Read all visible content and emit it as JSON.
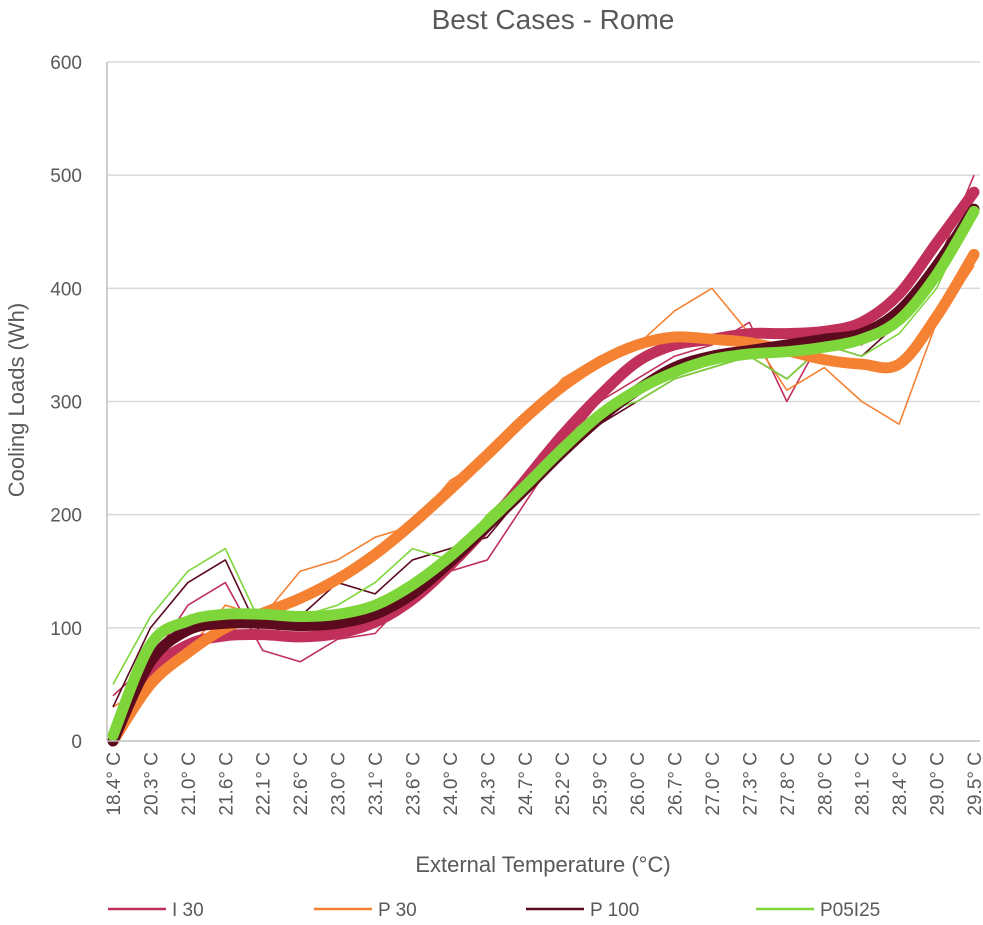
{
  "chart_data": {
    "type": "line",
    "title": "Best Cases - Rome",
    "xlabel": "External Temperature (°C)",
    "ylabel": "Cooling Loads (Wh)",
    "ylim": [
      0,
      600
    ],
    "yticks": [
      0,
      100,
      200,
      300,
      400,
      500,
      600
    ],
    "grid": "horizontal",
    "legend_position": "bottom",
    "categories": [
      "18.4° C",
      "20.3° C",
      "21.0° C",
      "21.6° C",
      "22.1° C",
      "22.6° C",
      "23.0° C",
      "23.1° C",
      "23.6° C",
      "24.0° C",
      "24.3° C",
      "24.7° C",
      "25.2° C",
      "25.9° C",
      "26.0° C",
      "26.7° C",
      "27.0° C",
      "27.3° C",
      "27.8° C",
      "28.0° C",
      "28.1° C",
      "28.4° C",
      "29.0° C",
      "29.5° C"
    ],
    "series": [
      {
        "name": "I 30",
        "color": "#c0305a",
        "trend": [
          0,
          60,
          85,
          93,
          94,
          92,
          95,
          105,
          125,
          155,
          190,
          230,
          270,
          305,
          335,
          350,
          355,
          360,
          360,
          362,
          370,
          395,
          440,
          485
        ],
        "raw": [
          40,
          70,
          120,
          140,
          80,
          70,
          90,
          95,
          130,
          150,
          160,
          210,
          260,
          300,
          320,
          340,
          350,
          370,
          300,
          360,
          350,
          380,
          420,
          500
        ]
      },
      {
        "name": "P 30",
        "color": "#f58233",
        "trend": [
          0,
          50,
          78,
          100,
          113,
          126,
          143,
          165,
          192,
          222,
          253,
          285,
          313,
          335,
          350,
          357,
          355,
          352,
          345,
          337,
          333,
          333,
          375,
          430
        ],
        "raw": [
          30,
          50,
          80,
          120,
          110,
          150,
          160,
          180,
          190,
          230,
          250,
          280,
          320,
          340,
          350,
          380,
          400,
          360,
          310,
          330,
          300,
          280,
          370,
          420
        ]
      },
      {
        "name": "P 100",
        "color": "#5c0a1e",
        "trend": [
          0,
          70,
          98,
          104,
          104,
          102,
          104,
          112,
          130,
          158,
          190,
          222,
          255,
          285,
          310,
          330,
          340,
          345,
          350,
          355,
          360,
          380,
          420,
          470
        ],
        "raw": [
          30,
          100,
          140,
          160,
          90,
          110,
          140,
          130,
          160,
          170,
          180,
          220,
          250,
          280,
          300,
          320,
          330,
          340,
          320,
          350,
          340,
          370,
          410,
          480
        ]
      },
      {
        "name": "P05I25",
        "color": "#7ed63b",
        "trend": [
          5,
          85,
          106,
          112,
          112,
          110,
          112,
          120,
          138,
          163,
          193,
          225,
          258,
          288,
          310,
          326,
          337,
          342,
          344,
          348,
          355,
          372,
          412,
          468
        ],
        "raw": [
          50,
          110,
          150,
          170,
          100,
          110,
          120,
          140,
          170,
          160,
          200,
          230,
          250,
          290,
          300,
          320,
          330,
          340,
          320,
          350,
          340,
          360,
          400,
          470
        ]
      }
    ]
  }
}
